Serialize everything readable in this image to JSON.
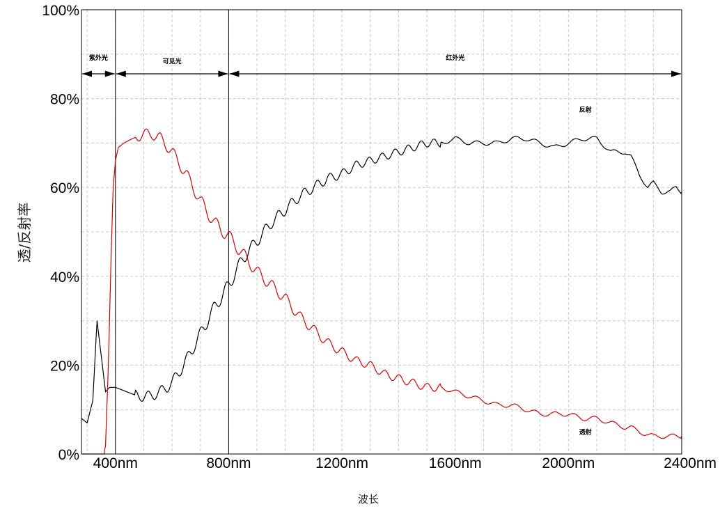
{
  "chart_data": {
    "type": "line",
    "xlabel": "波长",
    "ylabel": "透/反射率",
    "xlim": [
      280,
      2400
    ],
    "ylim": [
      0,
      100
    ],
    "x_ticks": [
      400,
      800,
      1200,
      1600,
      2000,
      2400
    ],
    "x_tick_labels": [
      "400nm",
      "800nm",
      "1200nm",
      "1600nm",
      "2000nm",
      "2400nm"
    ],
    "y_ticks": [
      0,
      20,
      40,
      60,
      80,
      100
    ],
    "y_tick_labels": [
      "0%",
      "20%",
      "40%",
      "60%",
      "80%",
      "100%"
    ],
    "grid": true,
    "region_boundaries": [
      280,
      400,
      800,
      2400
    ],
    "regions": [
      {
        "label": "紫外光",
        "from": 280,
        "to": 400
      },
      {
        "label": "可见光",
        "from": 400,
        "to": 800
      },
      {
        "label": "红外光",
        "from": 800,
        "to": 2400
      }
    ],
    "series": [
      {
        "name": "反射",
        "color": "#000000",
        "label_at": [
          2060,
          77
        ],
        "x": [
          280,
          300,
          320,
          335,
          350,
          365,
          380,
          400,
          440,
          480,
          520,
          560,
          600,
          650,
          700,
          750,
          800,
          850,
          900,
          950,
          1000,
          1050,
          1100,
          1150,
          1200,
          1250,
          1300,
          1350,
          1400,
          1450,
          1500,
          1550,
          1600,
          1650,
          1700,
          1750,
          1800,
          1850,
          1900,
          1950,
          2000,
          2050,
          2100,
          2150,
          2200,
          2220,
          2250,
          2280,
          2300,
          2330,
          2360,
          2380,
          2400
        ],
        "y": [
          8,
          7,
          12,
          30,
          22,
          14,
          15,
          15,
          14,
          13,
          13,
          14,
          16,
          21,
          27,
          33,
          38,
          44,
          48,
          52,
          55,
          58,
          60,
          62,
          63,
          65,
          66,
          67,
          68,
          69,
          70,
          70,
          71,
          70,
          70,
          70,
          71,
          71,
          70,
          69,
          70,
          71,
          71,
          68,
          68,
          67,
          63,
          60,
          61,
          59,
          59,
          60,
          59
        ]
      },
      {
        "name": "透射",
        "color": "#cc0000",
        "label_at": [
          2060,
          4.5
        ],
        "x": [
          280,
          360,
          365,
          375,
          385,
          392,
          400,
          410,
          430,
          460,
          500,
          530,
          560,
          600,
          650,
          700,
          750,
          800,
          850,
          900,
          950,
          1000,
          1050,
          1100,
          1150,
          1200,
          1250,
          1300,
          1350,
          1400,
          1450,
          1500,
          1550,
          1600,
          1650,
          1700,
          1750,
          1800,
          1850,
          1900,
          1950,
          2000,
          2050,
          2100,
          2150,
          2200,
          2220,
          2250,
          2300,
          2350,
          2400
        ],
        "y": [
          0,
          0,
          2,
          20,
          45,
          60,
          66,
          69,
          70,
          71,
          72,
          72,
          71,
          68,
          63,
          57,
          52,
          49,
          45,
          41,
          38,
          35,
          31,
          28,
          25,
          23,
          21,
          20,
          18,
          17,
          16,
          15,
          15,
          14,
          13,
          12,
          11,
          11,
          10,
          9,
          9,
          9,
          8,
          8,
          7,
          6,
          6,
          5,
          4,
          4,
          4
        ]
      }
    ]
  }
}
